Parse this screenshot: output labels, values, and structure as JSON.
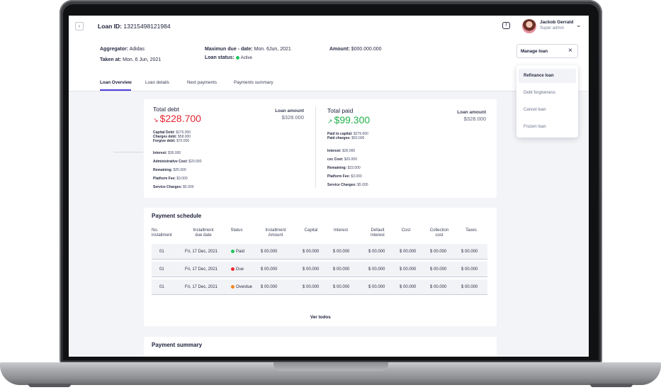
{
  "header": {
    "back_icon": "chevron-left-icon",
    "loan_id_label": "Loan ID:",
    "loan_id_value": "13215498121984",
    "chat_icon": "message-alert-icon",
    "user": {
      "name": "Jackob Gerrald",
      "role": "Super admin",
      "menu_icon": "chevron-down-icon"
    }
  },
  "loan_meta": {
    "aggregator_label": "Aggregator:",
    "aggregator_value": "Adidas",
    "taken_label": "Taken at:",
    "taken_value": "Mon. 6 Jun, 2021",
    "due_label": "Maximun due - date:",
    "due_value": "Mon. 6Jun, 2021",
    "status_label": "Loan status:",
    "status_value": "Active",
    "amount_label": "Amount:",
    "amount_value": "$000.000.000"
  },
  "manage": {
    "label": "Manage loan",
    "options": [
      "Refinance loan",
      "Debt forgiveness",
      "Cancel loan",
      "Frozen loan"
    ],
    "highlighted": "Refinance loan"
  },
  "tabs": [
    "Loan Overview",
    "Loan details",
    "Next payments",
    "Payments summary"
  ],
  "active_tab": "Loan Overview",
  "total_debt": {
    "title": "Total debt",
    "value": "$228.700",
    "loan_amount_label": "Loan amount",
    "loan_amount_value": "$328.000",
    "breakdown": [
      {
        "label": "Capital Debt:",
        "value": "$276.000"
      },
      {
        "label": "Charges debt:",
        "value": "$58.000"
      },
      {
        "label": "Forgive debt:",
        "value": "$70.000"
      }
    ],
    "details": [
      {
        "label": "Interest:",
        "value": "$30.000"
      },
      {
        "label": "Administrative Cost:",
        "value": "$20.000"
      },
      {
        "label": "Remaining:",
        "value": "$25.000"
      },
      {
        "label": "Platform Fee:",
        "value": "$3.000"
      },
      {
        "label": "Service Charges:",
        "value": "$5.000"
      }
    ]
  },
  "total_paid": {
    "title": "Total paid",
    "value": "$99.300",
    "loan_amount_label": "Loan amount",
    "loan_amount_value": "$328.000",
    "breakdown": [
      {
        "label": "Paid to capital:",
        "value": "$279.000"
      },
      {
        "label": "Paid charges:",
        "value": "$50.000"
      }
    ],
    "details": [
      {
        "label": "Interest:",
        "value": "$30.000"
      },
      {
        "label": "cxc Cost:",
        "value": "$20.000"
      },
      {
        "label": "Remaining:",
        "value": "$23.000"
      },
      {
        "label": "Platform Fee:",
        "value": "$3.000"
      },
      {
        "label": "Service Charges:",
        "value": "$5.000"
      }
    ]
  },
  "schedule": {
    "title": "Payment schedule",
    "columns": [
      "No.\ninstallment",
      "Installment\ndue date",
      "Status",
      "Installment\nAmount",
      "Capital",
      "Interest",
      "Default\ninterest",
      "Cost",
      "Collection\ncost",
      "Taxes"
    ],
    "rows": [
      {
        "no": "01",
        "date": "Fri, 17 Dec, 2021",
        "status": "Paid",
        "status_color": "#22c55e",
        "amount": "$ 00.000",
        "capital": "$ 00.000",
        "interest": "$ 00.000",
        "default": "$ 00.000",
        "cost": "$ 00.000",
        "collection": "$ 00.000",
        "taxes": "$ 00.000"
      },
      {
        "no": "01",
        "date": "Fri, 17 Dec, 2021",
        "status": "Due",
        "status_color": "#ef2a34",
        "amount": "$ 00.000",
        "capital": "$ 00.000",
        "interest": "$ 00.000",
        "default": "$ 00.000",
        "cost": "$ 00.000",
        "collection": "$ 00.000",
        "taxes": "$ 00.000"
      },
      {
        "no": "01",
        "date": "Fri, 17 Dec, 2021",
        "status": "Overdue",
        "status_color": "#f5841f",
        "amount": "$ 00.000",
        "capital": "$ 00.000",
        "interest": "$ 00.000",
        "default": "$ 00.000",
        "cost": "$ 00.000",
        "collection": "$ 00.000",
        "taxes": "$ 00.000"
      }
    ],
    "see_all": "Ver todos"
  },
  "summary": {
    "title": "Payment summary"
  },
  "colors": {
    "accent": "#4b3fd8",
    "debt_red": "#e5252f",
    "paid_green": "#22b04b",
    "active_status": "#22c55e"
  }
}
